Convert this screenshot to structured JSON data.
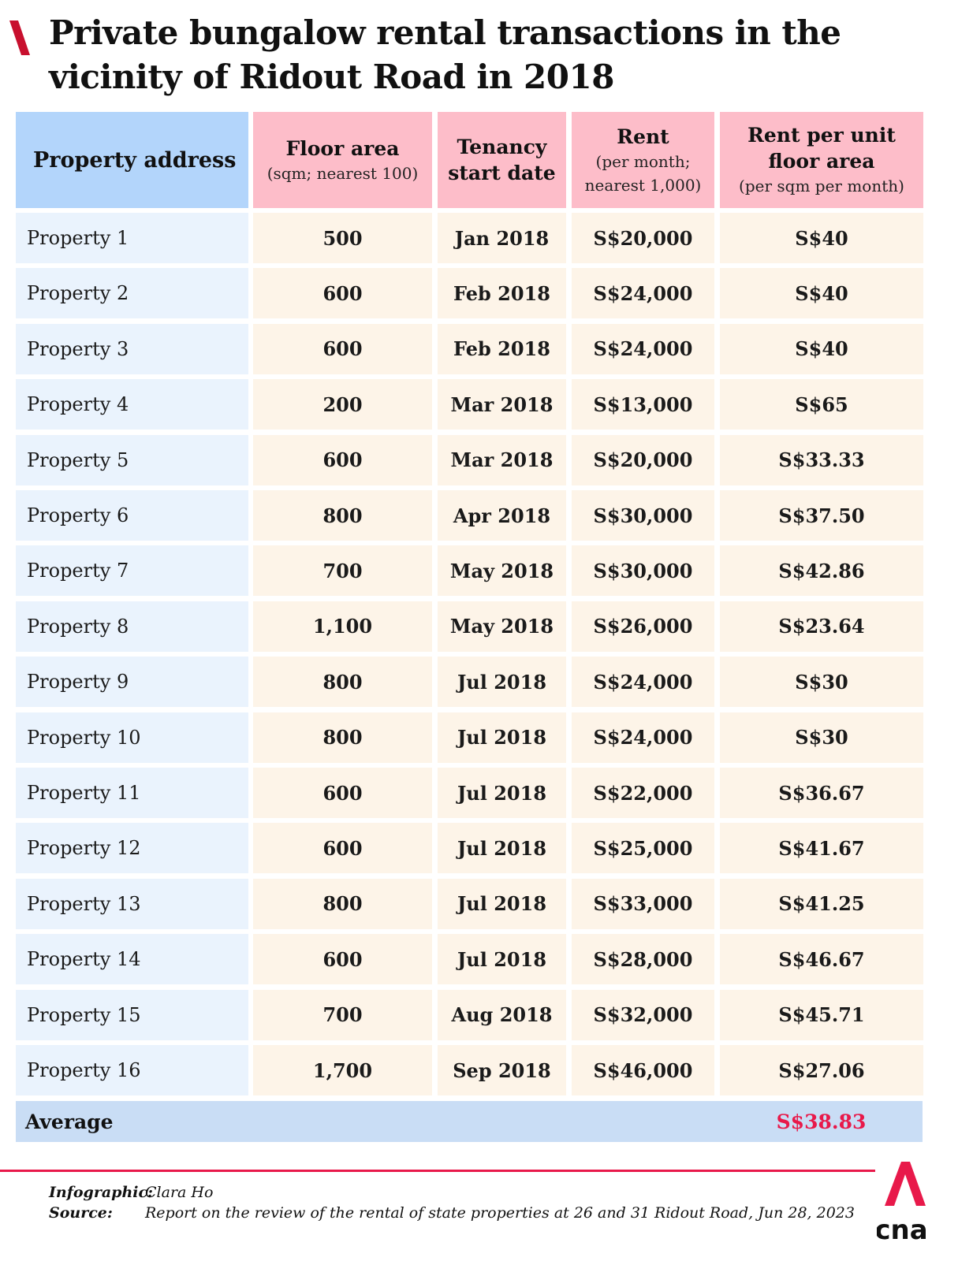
{
  "title": "Private bungalow rental transactions in the vicinity of Ridout Road in 2018",
  "colors": {
    "accent": "#e8194a",
    "header_blue": "#b3d5fb",
    "header_pink": "#fdbdc9",
    "address_cell": "#eaf3fd",
    "value_cell": "#fdf4e8",
    "average_row": "#c9ddf5"
  },
  "headers": {
    "address": "Property address",
    "floor_area": {
      "main": "Floor area",
      "sub": "(sqm; nearest 100)"
    },
    "tenancy": {
      "line1": "Tenancy",
      "line2": "start date"
    },
    "rent": {
      "main": "Rent",
      "sub1": "(per month;",
      "sub2": "nearest 1,000)"
    },
    "rent_per_unit": {
      "line1": "Rent per unit",
      "line2": "floor area",
      "sub": "(per sqm per month)"
    }
  },
  "chart_data": {
    "type": "table",
    "title": "Private bungalow rental transactions in the vicinity of Ridout Road in 2018",
    "columns": [
      "Property address",
      "Floor area (sqm; nearest 100)",
      "Tenancy start date",
      "Rent (per month; nearest 1,000)",
      "Rent per unit floor area (per sqm per month)"
    ],
    "rows": [
      [
        "Property 1",
        "500",
        "Jan 2018",
        "S$20,000",
        "S$40"
      ],
      [
        "Property 2",
        "600",
        "Feb 2018",
        "S$24,000",
        "S$40"
      ],
      [
        "Property 3",
        "600",
        "Feb 2018",
        "S$24,000",
        "S$40"
      ],
      [
        "Property 4",
        "200",
        "Mar 2018",
        "S$13,000",
        "S$65"
      ],
      [
        "Property 5",
        "600",
        "Mar 2018",
        "S$20,000",
        "S$33.33"
      ],
      [
        "Property 6",
        "800",
        "Apr 2018",
        "S$30,000",
        "S$37.50"
      ],
      [
        "Property 7",
        "700",
        "May 2018",
        "S$30,000",
        "S$42.86"
      ],
      [
        "Property 8",
        "1,100",
        "May 2018",
        "S$26,000",
        "S$23.64"
      ],
      [
        "Property 9",
        "800",
        "Jul 2018",
        "S$24,000",
        "S$30"
      ],
      [
        "Property 10",
        "800",
        "Jul 2018",
        "S$24,000",
        "S$30"
      ],
      [
        "Property 11",
        "600",
        "Jul 2018",
        "S$22,000",
        "S$36.67"
      ],
      [
        "Property 12",
        "600",
        "Jul 2018",
        "S$25,000",
        "S$41.67"
      ],
      [
        "Property 13",
        "800",
        "Jul 2018",
        "S$33,000",
        "S$41.25"
      ],
      [
        "Property 14",
        "600",
        "Jul 2018",
        "S$28,000",
        "S$46.67"
      ],
      [
        "Property 15",
        "700",
        "Aug 2018",
        "S$32,000",
        "S$45.71"
      ],
      [
        "Property 16",
        "1,700",
        "Sep 2018",
        "S$46,000",
        "S$27.06"
      ]
    ],
    "average": {
      "label": "Average",
      "value": "S$38.83"
    }
  },
  "footer": {
    "infographic_label": "Infographic:",
    "infographic_value": "Clara Ho",
    "source_label": "Source:",
    "source_value": "Report on the review of the rental of state properties at 26 and 31 Ridout Road, Jun 28, 2023"
  },
  "logo": {
    "text": "cna",
    "icon": "cna-logo-icon"
  }
}
